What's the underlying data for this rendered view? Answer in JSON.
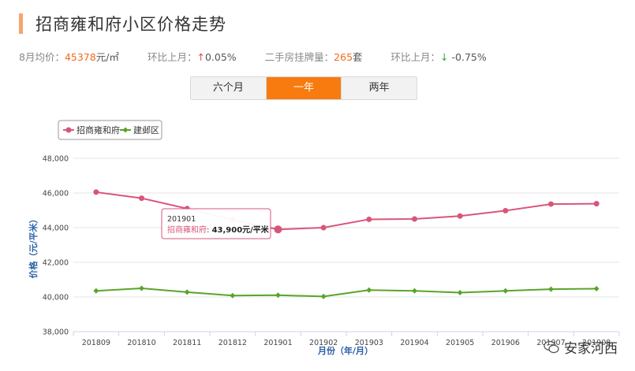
{
  "header": {
    "title": "招商雍和府小区价格走势"
  },
  "stats": {
    "avg_label": "8月均价：",
    "avg_value": "45378",
    "avg_unit": "元/㎡",
    "mom_label": "环比上月：",
    "mom_arrow": "↑",
    "mom_value": "0.05%",
    "listing_label": "二手房挂牌量：",
    "listing_value": "265",
    "listing_unit": "套",
    "mom2_label": "环比上月：",
    "mom2_arrow": "↓",
    "mom2_value": " -0.75%"
  },
  "tabs": [
    {
      "label": "六个月",
      "active": false
    },
    {
      "label": "一年",
      "active": true
    },
    {
      "label": "两年",
      "active": false
    }
  ],
  "colors": {
    "series1": "#d9557a",
    "series2": "#5aa42b",
    "accent": "#f77b0f"
  },
  "tooltip": {
    "month": "201901",
    "series": "招商雍和府",
    "value": "43,900元/平米"
  },
  "watermark": {
    "text": "安家河西",
    "icon": "wechat-icon"
  },
  "chart_data": {
    "type": "line",
    "categories": [
      "201809",
      "201810",
      "201811",
      "201812",
      "201901",
      "201902",
      "201903",
      "201904",
      "201905",
      "201906",
      "201907",
      "201908"
    ],
    "series": [
      {
        "name": "招商雍和府",
        "color": "#d9557a",
        "values": [
          46050,
          45700,
          45100,
          44450,
          43900,
          44000,
          44480,
          44500,
          44670,
          44980,
          45360,
          45380
        ]
      },
      {
        "name": "建邺区",
        "color": "#5aa42b",
        "values": [
          40350,
          40500,
          40280,
          40080,
          40100,
          40030,
          40400,
          40350,
          40250,
          40350,
          40450,
          40480
        ]
      }
    ],
    "yticks": [
      "38,000",
      "40,000",
      "42,000",
      "44,000",
      "46,000",
      "48,000"
    ],
    "ylim": [
      38000,
      48000
    ],
    "xlabel": "月份（年/月）",
    "ylabel": "价格（元/平米）",
    "legend_position": "top-left",
    "grid": true
  }
}
